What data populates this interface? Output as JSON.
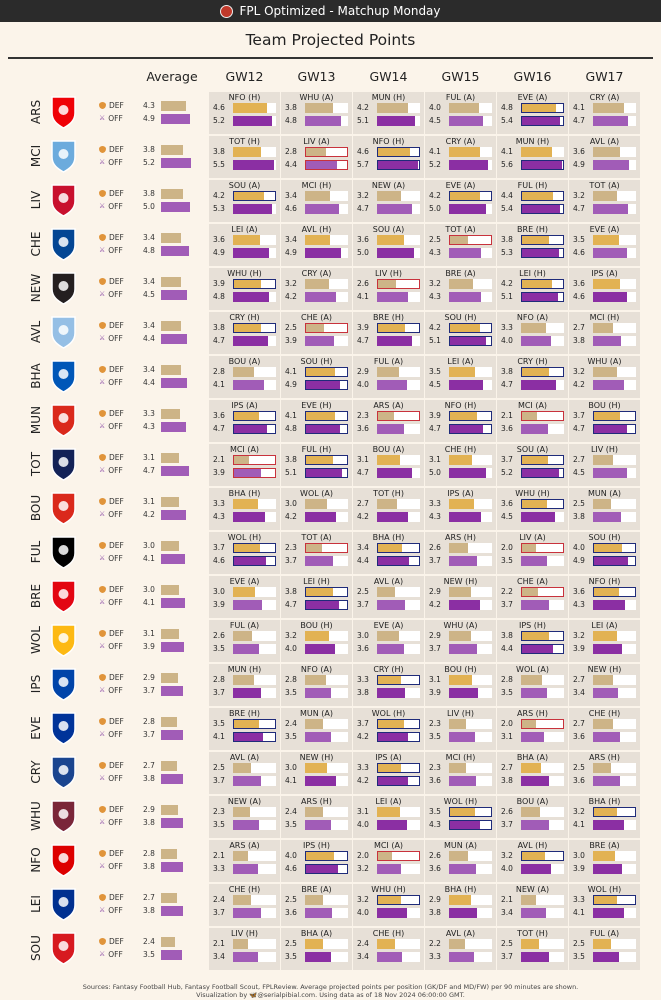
{
  "header": {
    "title": "FPL Optimized - Matchup Monday"
  },
  "page_title": "Team Projected Points",
  "columns": {
    "average": "Average",
    "gws": [
      "GW12",
      "GW13",
      "GW14",
      "GW15",
      "GW16",
      "GW17"
    ]
  },
  "position_labels": {
    "def": "DEF",
    "off": "OFF"
  },
  "footer": {
    "sources": "Sources: Fantasy Football Hub, Fantasy Football Scout, FPLReview. Average projected points per position (GK/DF and MD/FW) per 90 minutes are shown.",
    "credit": "Visualization by 🦋@serialpibial.com. Using data as of 18 Nov 2024 06:00:00 GMT."
  },
  "colors": {
    "def": "#e2b253",
    "off": "#8b2fa3",
    "highlight_strong": "#1f2b7a",
    "highlight_weak": "#c8323c",
    "def_muted": "#cdb487",
    "off_muted": "#a15cb7",
    "cell_bg": "#e7e0d7"
  },
  "chart_data": {
    "type": "table",
    "title": "Team Projected Points",
    "columns": [
      "Average",
      "GW12",
      "GW13",
      "GW14",
      "GW15",
      "GW16",
      "GW17"
    ],
    "teams": [
      {
        "abbr": "ARS",
        "crest": "#ef0107",
        "avg_def": "4.3",
        "avg_off": "4.9",
        "fixtures": [
          [
            "NFO (H)",
            "4.6",
            "5.2"
          ],
          [
            "WHU (A)",
            "3.8",
            "4.8"
          ],
          [
            "MUN (H)",
            "4.2",
            "5.1"
          ],
          [
            "FUL (A)",
            "4.0",
            "4.5"
          ],
          [
            "EVE (A)",
            "4.8",
            "5.4"
          ],
          [
            "CRY (A)",
            "4.1",
            "4.7"
          ]
        ]
      },
      {
        "abbr": "MCI",
        "crest": "#6cabdd",
        "avg_def": "3.8",
        "avg_off": "5.2",
        "fixtures": [
          [
            "TOT (H)",
            "3.8",
            "5.5"
          ],
          [
            "LIV (A)",
            "2.8",
            "4.4"
          ],
          [
            "NFO (H)",
            "4.6",
            "5.7"
          ],
          [
            "CRY (A)",
            "4.1",
            "5.2"
          ],
          [
            "MUN (H)",
            "4.1",
            "5.6"
          ],
          [
            "AVL (A)",
            "3.6",
            "4.9"
          ]
        ]
      },
      {
        "abbr": "LIV",
        "crest": "#c8102e",
        "avg_def": "3.8",
        "avg_off": "5.0",
        "fixtures": [
          [
            "SOU (A)",
            "4.2",
            "5.3"
          ],
          [
            "MCI (H)",
            "3.4",
            "4.6"
          ],
          [
            "NEW (A)",
            "3.2",
            "4.7"
          ],
          [
            "EVE (A)",
            "4.2",
            "5.0"
          ],
          [
            "FUL (H)",
            "4.4",
            "5.4"
          ],
          [
            "TOT (A)",
            "3.2",
            "4.7"
          ]
        ]
      },
      {
        "abbr": "CHE",
        "crest": "#034694",
        "avg_def": "3.4",
        "avg_off": "4.8",
        "fixtures": [
          [
            "LEI (A)",
            "3.6",
            "4.9"
          ],
          [
            "AVL (H)",
            "3.4",
            "4.9"
          ],
          [
            "SOU (A)",
            "3.6",
            "5.0"
          ],
          [
            "TOT (A)",
            "2.5",
            "4.3"
          ],
          [
            "BRE (H)",
            "3.8",
            "5.3"
          ],
          [
            "EVE (A)",
            "3.5",
            "4.6"
          ]
        ]
      },
      {
        "abbr": "NEW",
        "crest": "#241f20",
        "avg_def": "3.4",
        "avg_off": "4.5",
        "fixtures": [
          [
            "WHU (H)",
            "3.9",
            "4.8"
          ],
          [
            "CRY (A)",
            "3.2",
            "4.2"
          ],
          [
            "LIV (H)",
            "2.6",
            "4.1"
          ],
          [
            "BRE (A)",
            "3.2",
            "4.3"
          ],
          [
            "LEI (H)",
            "4.2",
            "5.1"
          ],
          [
            "IPS (A)",
            "3.6",
            "4.6"
          ]
        ]
      },
      {
        "abbr": "AVL",
        "crest": "#95bfe5",
        "avg_def": "3.4",
        "avg_off": "4.4",
        "fixtures": [
          [
            "CRY (H)",
            "3.8",
            "4.7"
          ],
          [
            "CHE (A)",
            "2.5",
            "3.9"
          ],
          [
            "BRE (H)",
            "3.9",
            "4.7"
          ],
          [
            "SOU (H)",
            "4.2",
            "5.1"
          ],
          [
            "NFO (A)",
            "3.3",
            "4.0"
          ],
          [
            "MCI (H)",
            "2.7",
            "3.8"
          ]
        ]
      },
      {
        "abbr": "BHA",
        "crest": "#0057b8",
        "avg_def": "3.4",
        "avg_off": "4.4",
        "fixtures": [
          [
            "BOU (A)",
            "2.8",
            "4.1"
          ],
          [
            "SOU (H)",
            "4.1",
            "4.9"
          ],
          [
            "FUL (A)",
            "2.9",
            "4.0"
          ],
          [
            "LEI (A)",
            "3.5",
            "4.5"
          ],
          [
            "CRY (H)",
            "3.8",
            "4.7"
          ],
          [
            "WHU (A)",
            "3.2",
            "4.2"
          ]
        ]
      },
      {
        "abbr": "MUN",
        "crest": "#da291c",
        "avg_def": "3.3",
        "avg_off": "4.3",
        "fixtures": [
          [
            "IPS (A)",
            "3.6",
            "4.7"
          ],
          [
            "EVE (H)",
            "4.1",
            "4.8"
          ],
          [
            "ARS (A)",
            "2.3",
            "3.6"
          ],
          [
            "NFO (H)",
            "3.9",
            "4.7"
          ],
          [
            "MCI (A)",
            "2.1",
            "3.6"
          ],
          [
            "BOU (H)",
            "3.7",
            "4.7"
          ]
        ]
      },
      {
        "abbr": "TOT",
        "crest": "#132257",
        "avg_def": "3.1",
        "avg_off": "4.7",
        "fixtures": [
          [
            "MCI (A)",
            "2.1",
            "3.9"
          ],
          [
            "FUL (H)",
            "3.8",
            "5.1"
          ],
          [
            "BOU (A)",
            "3.1",
            "4.7"
          ],
          [
            "CHE (H)",
            "3.1",
            "5.0"
          ],
          [
            "SOU (A)",
            "3.7",
            "5.2"
          ],
          [
            "LIV (H)",
            "2.7",
            "4.5"
          ]
        ]
      },
      {
        "abbr": "BOU",
        "crest": "#da291c",
        "avg_def": "3.1",
        "avg_off": "4.2",
        "fixtures": [
          [
            "BHA (H)",
            "3.3",
            "4.3"
          ],
          [
            "WOL (A)",
            "3.0",
            "4.2"
          ],
          [
            "TOT (H)",
            "2.7",
            "4.2"
          ],
          [
            "IPS (A)",
            "3.3",
            "4.3"
          ],
          [
            "WHU (H)",
            "3.6",
            "4.5"
          ],
          [
            "MUN (A)",
            "2.5",
            "3.8"
          ]
        ]
      },
      {
        "abbr": "FUL",
        "crest": "#000000",
        "avg_def": "3.0",
        "avg_off": "4.1",
        "fixtures": [
          [
            "WOL (H)",
            "3.7",
            "4.6"
          ],
          [
            "TOT (A)",
            "2.3",
            "3.7"
          ],
          [
            "BHA (H)",
            "3.4",
            "4.4"
          ],
          [
            "ARS (H)",
            "2.6",
            "3.7"
          ],
          [
            "LIV (A)",
            "2.0",
            "3.5"
          ],
          [
            "SOU (H)",
            "4.0",
            "4.9"
          ]
        ]
      },
      {
        "abbr": "BRE",
        "crest": "#e30613",
        "avg_def": "3.0",
        "avg_off": "4.1",
        "fixtures": [
          [
            "EVE (A)",
            "3.0",
            "3.9"
          ],
          [
            "LEI (H)",
            "3.8",
            "4.7"
          ],
          [
            "AVL (A)",
            "2.5",
            "3.7"
          ],
          [
            "NEW (H)",
            "2.9",
            "4.2"
          ],
          [
            "CHE (A)",
            "2.2",
            "3.7"
          ],
          [
            "NFO (H)",
            "3.6",
            "4.3"
          ]
        ]
      },
      {
        "abbr": "WOL",
        "crest": "#fdb913",
        "avg_def": "3.1",
        "avg_off": "3.9",
        "fixtures": [
          [
            "FUL (A)",
            "2.6",
            "3.5"
          ],
          [
            "BOU (H)",
            "3.2",
            "4.0"
          ],
          [
            "EVE (A)",
            "3.0",
            "3.6"
          ],
          [
            "WHU (A)",
            "2.9",
            "3.7"
          ],
          [
            "IPS (H)",
            "3.8",
            "4.4"
          ],
          [
            "LEI (A)",
            "3.2",
            "3.9"
          ]
        ]
      },
      {
        "abbr": "IPS",
        "crest": "#0044a9",
        "avg_def": "2.9",
        "avg_off": "3.7",
        "fixtures": [
          [
            "MUN (H)",
            "2.8",
            "3.7"
          ],
          [
            "NFO (A)",
            "2.8",
            "3.5"
          ],
          [
            "CRY (H)",
            "3.3",
            "3.8"
          ],
          [
            "BOU (H)",
            "3.1",
            "3.9"
          ],
          [
            "WOL (A)",
            "2.8",
            "3.5"
          ],
          [
            "NEW (H)",
            "2.7",
            "3.4"
          ]
        ]
      },
      {
        "abbr": "EVE",
        "crest": "#003399",
        "avg_def": "2.8",
        "avg_off": "3.7",
        "fixtures": [
          [
            "BRE (H)",
            "3.5",
            "4.1"
          ],
          [
            "MUN (A)",
            "2.4",
            "3.5"
          ],
          [
            "WOL (H)",
            "3.7",
            "4.2"
          ],
          [
            "LIV (H)",
            "2.3",
            "3.5"
          ],
          [
            "ARS (H)",
            "2.0",
            "3.1"
          ],
          [
            "CHE (H)",
            "2.7",
            "3.6"
          ]
        ]
      },
      {
        "abbr": "CRY",
        "crest": "#1b458f",
        "avg_def": "2.7",
        "avg_off": "3.8",
        "fixtures": [
          [
            "AVL (A)",
            "2.5",
            "3.7"
          ],
          [
            "NEW (H)",
            "3.0",
            "4.1"
          ],
          [
            "IPS (A)",
            "3.3",
            "4.2"
          ],
          [
            "MCI (H)",
            "2.3",
            "3.6"
          ],
          [
            "BHA (A)",
            "2.7",
            "3.8"
          ],
          [
            "ARS (H)",
            "2.5",
            "3.6"
          ]
        ]
      },
      {
        "abbr": "WHU",
        "crest": "#7a263a",
        "avg_def": "2.9",
        "avg_off": "3.8",
        "fixtures": [
          [
            "NEW (A)",
            "2.3",
            "3.5"
          ],
          [
            "ARS (H)",
            "2.4",
            "3.5"
          ],
          [
            "LEI (A)",
            "3.1",
            "4.0"
          ],
          [
            "WOL (H)",
            "3.5",
            "4.3"
          ],
          [
            "BOU (A)",
            "2.6",
            "3.7"
          ],
          [
            "BHA (H)",
            "3.2",
            "4.1"
          ]
        ]
      },
      {
        "abbr": "NFO",
        "crest": "#dd0000",
        "avg_def": "2.8",
        "avg_off": "3.8",
        "fixtures": [
          [
            "ARS (A)",
            "2.1",
            "3.3"
          ],
          [
            "IPS (H)",
            "4.0",
            "4.6"
          ],
          [
            "MCI (A)",
            "2.0",
            "3.2"
          ],
          [
            "MUN (A)",
            "2.6",
            "3.6"
          ],
          [
            "AVL (H)",
            "3.2",
            "4.0"
          ],
          [
            "BRE (A)",
            "3.0",
            "3.9"
          ]
        ]
      },
      {
        "abbr": "LEI",
        "crest": "#003090",
        "avg_def": "2.7",
        "avg_off": "3.8",
        "fixtures": [
          [
            "CHE (H)",
            "2.4",
            "3.7"
          ],
          [
            "BRE (A)",
            "2.5",
            "3.6"
          ],
          [
            "WHU (H)",
            "3.2",
            "4.0"
          ],
          [
            "BHA (H)",
            "2.9",
            "3.8"
          ],
          [
            "NEW (A)",
            "2.1",
            "3.4"
          ],
          [
            "WOL (H)",
            "3.3",
            "4.1"
          ]
        ]
      },
      {
        "abbr": "SOU",
        "crest": "#d71920",
        "avg_def": "2.4",
        "avg_off": "3.5",
        "fixtures": [
          [
            "LIV (H)",
            "2.1",
            "3.4"
          ],
          [
            "BHA (A)",
            "2.5",
            "3.5"
          ],
          [
            "CHE (H)",
            "2.4",
            "3.4"
          ],
          [
            "AVL (A)",
            "2.2",
            "3.3"
          ],
          [
            "TOT (H)",
            "2.5",
            "3.7"
          ],
          [
            "FUL (A)",
            "2.5",
            "3.5"
          ]
        ]
      }
    ]
  }
}
